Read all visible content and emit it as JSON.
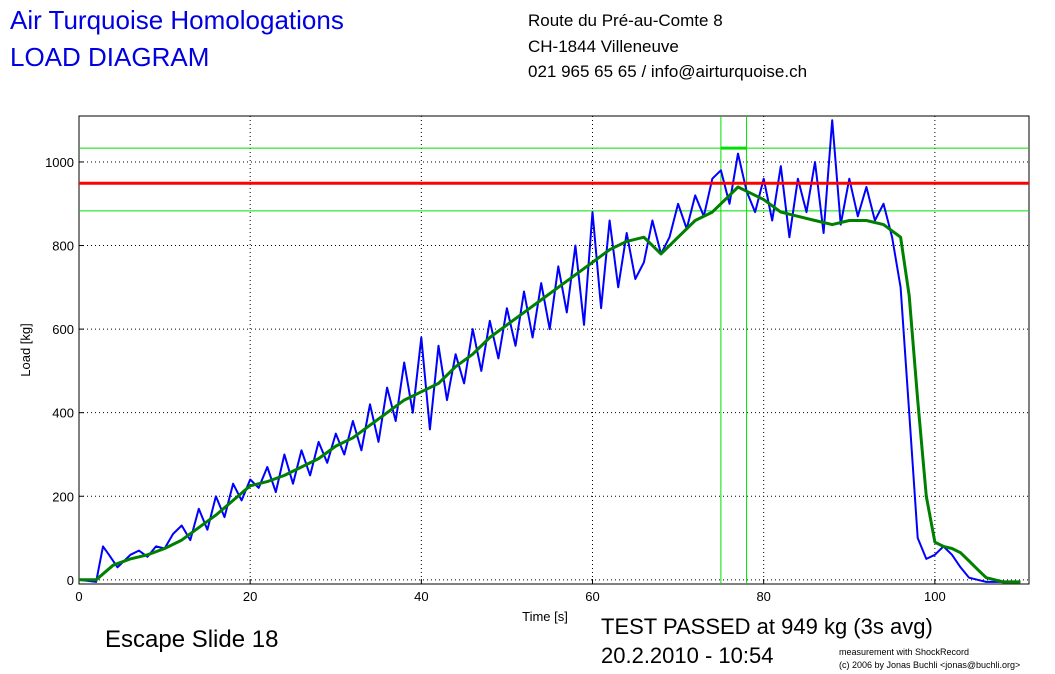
{
  "header": {
    "company": "Air Turquoise Homologations",
    "doc_title": "LOAD DIAGRAM",
    "address_line1": "Route du Pré-au-Comte 8",
    "address_line2": "CH-1844 Villeneuve",
    "contact": "021 965 65 65 / info@airturquoise.ch"
  },
  "footer": {
    "test_name": "Escape Slide 18",
    "result": "TEST PASSED at 949 kg (3s avg)",
    "datetime": "20.2.2010 - 10:54",
    "credit1": "measurement with ShockRecord",
    "credit2": "(c) 2006 by Jonas Buchli <jonas@buchli.org>"
  },
  "colors": {
    "raw": "#0000ff",
    "avg": "#008000",
    "threshold": "#ff0000",
    "markers": "#00e000"
  },
  "chart_data": {
    "type": "line",
    "xlabel": "Time [s]",
    "ylabel": "Load [kg]",
    "xlim": [
      0,
      111
    ],
    "ylim": [
      -10,
      1110
    ],
    "xticks": [
      0,
      20,
      40,
      60,
      80,
      100
    ],
    "yticks": [
      0,
      200,
      400,
      600,
      800,
      1000
    ],
    "grid": true,
    "threshold": 949,
    "band_upper": 1033,
    "band_lower": 883,
    "window_start": 75,
    "window_end": 78,
    "window_peak": 1033,
    "series": [
      {
        "x": [
          0,
          2,
          2.8,
          3.5,
          4.5,
          6,
          7,
          8,
          9,
          10,
          11,
          12,
          13,
          14,
          15,
          16,
          17,
          18,
          19,
          20,
          21,
          22,
          23,
          24,
          25,
          26,
          27,
          28,
          29,
          30,
          31,
          32,
          33,
          34,
          35,
          36,
          37,
          38,
          39,
          40,
          41,
          42,
          43,
          44,
          45,
          46,
          47,
          48,
          49,
          50,
          51,
          52,
          53,
          54,
          55,
          56,
          57,
          58,
          59,
          60,
          61,
          62,
          63,
          64,
          65,
          66,
          67,
          68,
          69,
          70,
          71,
          72,
          73,
          74,
          75,
          76,
          77,
          78,
          79,
          80,
          81,
          82,
          83,
          84,
          85,
          86,
          87,
          88,
          89,
          90,
          91,
          92,
          93,
          94,
          95,
          96,
          97,
          98,
          99,
          100,
          101,
          102,
          103,
          104,
          105,
          106,
          107,
          108,
          109,
          110
        ],
        "values": [
          0,
          -5,
          80,
          60,
          30,
          60,
          70,
          55,
          80,
          75,
          110,
          130,
          95,
          170,
          120,
          200,
          150,
          230,
          190,
          240,
          220,
          270,
          210,
          300,
          230,
          310,
          250,
          330,
          280,
          350,
          300,
          380,
          310,
          420,
          330,
          460,
          380,
          520,
          400,
          580,
          360,
          560,
          430,
          540,
          470,
          600,
          500,
          620,
          530,
          650,
          560,
          690,
          580,
          710,
          600,
          750,
          640,
          800,
          610,
          880,
          650,
          860,
          700,
          830,
          720,
          760,
          860,
          780,
          820,
          900,
          840,
          920,
          870,
          960,
          980,
          900,
          1020,
          930,
          880,
          960,
          860,
          990,
          820,
          960,
          880,
          1000,
          830,
          1100,
          850,
          960,
          870,
          940,
          860,
          900,
          820,
          700,
          400,
          100,
          50,
          60,
          80,
          60,
          30,
          5,
          0,
          -5,
          -5,
          -5,
          -5,
          -5
        ]
      },
      {
        "x": [
          0,
          2,
          4,
          6,
          8,
          10,
          12,
          14,
          16,
          18,
          20,
          22,
          24,
          26,
          28,
          30,
          32,
          34,
          36,
          38,
          40,
          42,
          44,
          46,
          48,
          50,
          52,
          54,
          56,
          58,
          60,
          62,
          64,
          66,
          68,
          70,
          72,
          74,
          76,
          77,
          78,
          80,
          82,
          84,
          86,
          88,
          90,
          92,
          94,
          96,
          97,
          98,
          99,
          100,
          101,
          102,
          103,
          104,
          105,
          106,
          107,
          108,
          109,
          110
        ],
        "values": [
          0,
          0,
          35,
          50,
          60,
          75,
          95,
          125,
          155,
          190,
          225,
          235,
          250,
          270,
          290,
          320,
          340,
          370,
          400,
          430,
          450,
          470,
          510,
          540,
          580,
          610,
          640,
          670,
          700,
          730,
          760,
          790,
          810,
          820,
          780,
          820,
          860,
          880,
          920,
          940,
          930,
          910,
          880,
          870,
          860,
          850,
          860,
          860,
          850,
          820,
          680,
          430,
          200,
          90,
          80,
          75,
          65,
          45,
          25,
          5,
          0,
          -5,
          -5,
          -5
        ]
      }
    ]
  }
}
